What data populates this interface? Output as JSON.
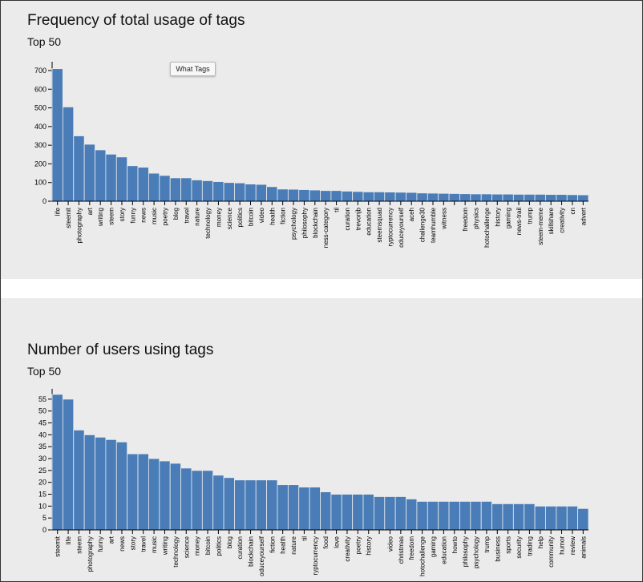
{
  "chart_data": [
    {
      "type": "bar",
      "title": "Frequency of total usage of tags",
      "subtitle": "Top 50",
      "ylim": [
        0,
        730
      ],
      "yticks": [
        0,
        100,
        200,
        300,
        400,
        500,
        600,
        700
      ],
      "categories": [
        "life",
        "steemit",
        "photography",
        "art",
        "writing",
        "steem",
        "story",
        "funny",
        "news",
        "music",
        "poetry",
        "blog",
        "travel",
        "nature",
        "technology",
        "money",
        "science",
        "politics",
        "bitcoin",
        "video",
        "health",
        "fiction",
        "psychology",
        "philosophy",
        "blockchain",
        "ness-category",
        "til",
        "curation",
        "trevonjb",
        "education",
        "steemsquad",
        "ryptocurrency",
        "oduceyourself",
        "aceh",
        "challenge30",
        "teamhumble",
        "witness",
        "",
        "freedom",
        "physics",
        "hotochallenge",
        "history",
        "gaming",
        "news-trail",
        "trump",
        "steem-meme",
        "skillshare",
        "creativity",
        "cn",
        "advert"
      ],
      "values": [
        710,
        505,
        350,
        305,
        275,
        252,
        237,
        190,
        182,
        150,
        138,
        125,
        125,
        114,
        110,
        105,
        100,
        98,
        92,
        90,
        78,
        65,
        64,
        62,
        60,
        57,
        57,
        54,
        52,
        50,
        50,
        49,
        48,
        47,
        44,
        43,
        42,
        41,
        40,
        39,
        39,
        38,
        38,
        37,
        37,
        37,
        36,
        36,
        35,
        34
      ],
      "grid": false
    },
    {
      "type": "bar",
      "title": "Number of users using tags",
      "subtitle": "Top 50",
      "ylim": [
        0,
        58
      ],
      "yticks": [
        0,
        5,
        10,
        15,
        20,
        25,
        30,
        35,
        40,
        45,
        50,
        55
      ],
      "categories": [
        "steemit",
        "life",
        "steem",
        "photography",
        "funny",
        "art",
        "news",
        "story",
        "travel",
        "music",
        "writing",
        "technology",
        "science",
        "money",
        "bitcoin",
        "politics",
        "blog",
        "curation",
        "blockchain",
        "oduceyourself",
        "fiction",
        "health",
        "nature",
        "til",
        "ryptocurrency",
        "food",
        "love",
        "creativity",
        "poetry",
        "history",
        "",
        "video",
        "christmas",
        "freedom",
        "hotochallenge",
        "gaming",
        "education",
        "howto",
        "philosophy",
        "psychology",
        "trump",
        "business",
        "sports",
        "security",
        "trading",
        "help",
        "community",
        "humor",
        "review",
        "animals"
      ],
      "values": [
        57,
        55,
        42,
        40,
        39,
        38,
        37,
        32,
        32,
        30,
        29,
        28,
        26,
        25,
        25,
        23,
        22,
        21,
        21,
        21,
        21,
        19,
        19,
        18,
        18,
        16,
        15,
        15,
        15,
        15,
        14,
        14,
        14,
        13,
        12,
        12,
        12,
        12,
        12,
        12,
        12,
        11,
        11,
        11,
        11,
        10,
        10,
        10,
        10,
        9
      ],
      "grid": false
    }
  ],
  "tooltip": {
    "label": "What Tags"
  },
  "colors": {
    "bar": "#4a7db8",
    "bar_stroke": "#ebebeb",
    "panel_bg": "#ebebeb"
  }
}
